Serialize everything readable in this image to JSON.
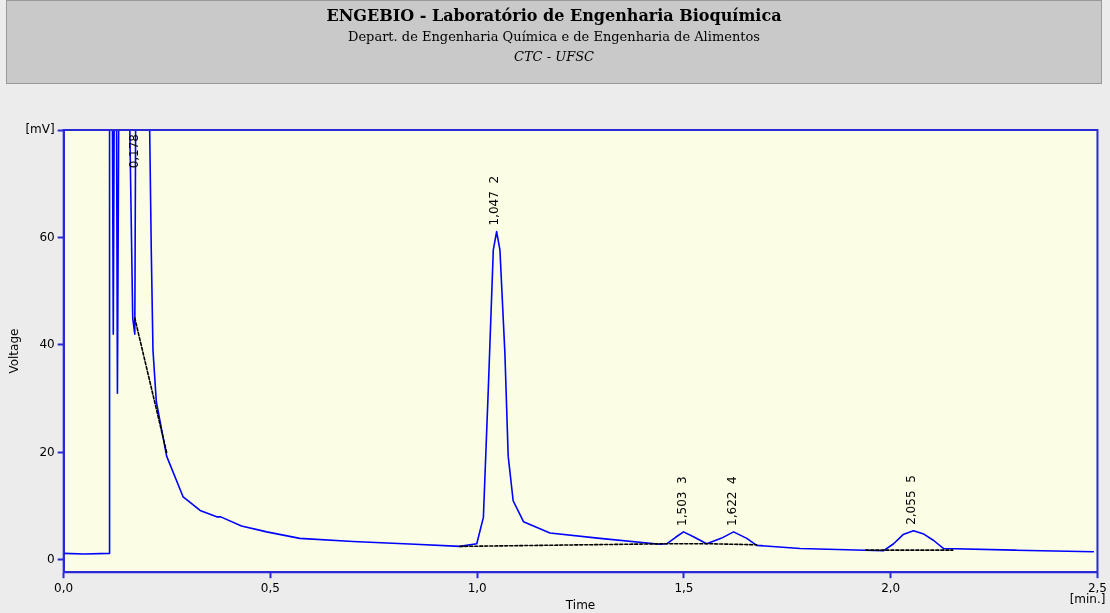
{
  "chart_data": {
    "type": "line",
    "title": "ENGEBIO - Laboratório de Engenharia Bioquímica",
    "subtitle": "Depart. de Engenharia Química e de Engenharia de Alimentos\nCTC - UFSC",
    "xlabel": "Time",
    "ylabel": "Voltage",
    "xlim": [
      0,
      2.5
    ],
    "ylim": [
      -2.3,
      80
    ],
    "xticks": [
      {
        "value": 0,
        "label": "0,0"
      },
      {
        "value": 0.5,
        "label": "0,5"
      },
      {
        "value": 1,
        "label": "1,0"
      },
      {
        "value": 1.5,
        "label": "1,5"
      },
      {
        "value": 2,
        "label": "2,0"
      },
      {
        "value": 2.5,
        "label": "2,5"
      }
    ],
    "yticks": [
      0,
      20,
      40,
      60,
      {
        "value": 80,
        "label": "[mV]"
      }
    ],
    "grid": false,
    "legend": false,
    "marker": "none",
    "series": [
      {
        "color": "#0000ff",
        "line_style": "solid",
        "x": [
          0,
          0.05,
          0.11,
          0.111,
          0.118,
          0.12,
          0.122,
          0.128,
          0.13,
          0.133,
          0.135,
          0.14,
          0.16,
          0.167,
          0.172,
          0.174,
          0.176,
          0.208,
          0.212,
          0.216,
          0.224,
          0.249,
          0.289,
          0.33,
          0.37,
          0.38,
          0.43,
          0.491,
          0.571,
          0.7,
          0.85,
          0.958,
          0.999,
          1.015,
          1.027,
          1.039,
          1.047,
          1.055,
          1.067,
          1.075,
          1.087,
          1.112,
          1.176,
          1.297,
          1.442,
          1.459,
          1.48,
          1.499,
          1.523,
          1.555,
          1.59,
          1.62,
          1.652,
          1.676,
          1.781,
          1.983,
          2.007,
          2.03,
          2.055,
          2.08,
          2.104,
          2.128,
          2.3,
          2.49
        ],
        "values": [
          1.2,
          1.1,
          1.2,
          80,
          80,
          42,
          80,
          80,
          31,
          80,
          80,
          80,
          80,
          45,
          42,
          80,
          80,
          80,
          57,
          39,
          29.5,
          19.3,
          11.7,
          9.2,
          8,
          8,
          6.3,
          5.2,
          4,
          3.4,
          2.9,
          2.5,
          3,
          7.9,
          32,
          57.7,
          61.1,
          57.7,
          38.5,
          19.3,
          11,
          7.1,
          5,
          4,
          2.9,
          3,
          4.2,
          5.2,
          4.3,
          3,
          4,
          5.2,
          4,
          2.7,
          2.1,
          1.7,
          3,
          4.7,
          5.4,
          4.8,
          3.6,
          2.1,
          1.8,
          1.5
        ]
      },
      {
        "color": "#000000",
        "line_style": "dashed",
        "x": [
          0.172,
          0.249,
          0.26,
          0.958,
          1.459,
          1.56,
          1.676,
          1.8,
          1.94,
          2.15
        ],
        "values": [
          45,
          20,
          null,
          2.5,
          3,
          3,
          2.8,
          null,
          1.8,
          1.8
        ]
      }
    ],
    "annotations": [
      {
        "text": "0,178",
        "x": 0.178,
        "y": 80
      },
      {
        "text": "1,047  2",
        "x": 1.047,
        "y": 61.1
      },
      {
        "text": "1,503  3",
        "x": 1.503,
        "y": 5.2
      },
      {
        "text": "1,622  4",
        "x": 1.622,
        "y": 5.2
      },
      {
        "text": "2,055  5",
        "x": 2.055,
        "y": 5.4
      },
      "[min.]"
    ]
  }
}
